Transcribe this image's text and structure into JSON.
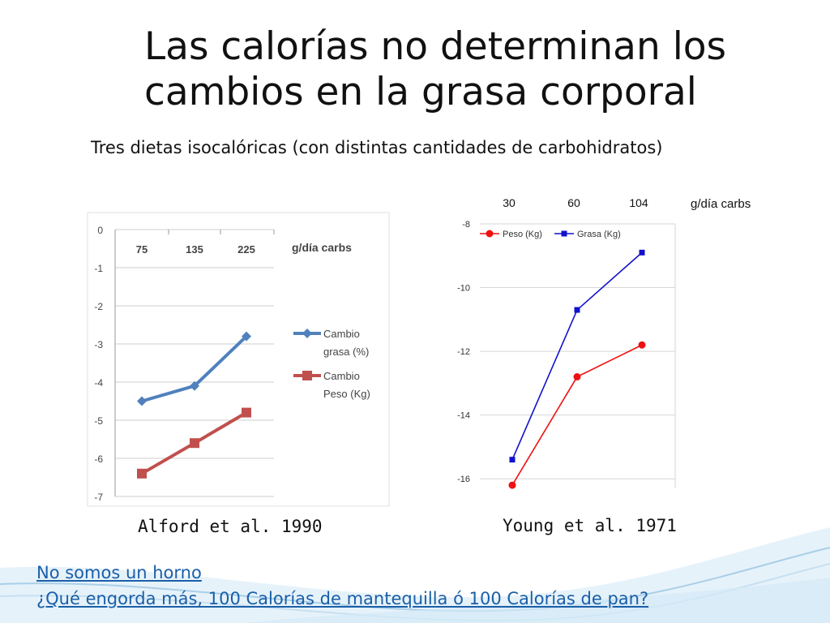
{
  "slide": {
    "title": "Las calorías no determinan los cambios en la grasa corporal",
    "subtitle": "Tres dietas isocalóricas (con distintas cantidades de carbohidratos)",
    "links": [
      {
        "label": "No somos un horno"
      },
      {
        "label": "¿Qué engorda más, 100 Calorías de mantequilla ó 100 Calorías de pan?"
      }
    ],
    "colors": {
      "link": "#1a5fa8",
      "wave": "#a9cfe8"
    }
  },
  "chart_data": [
    {
      "type": "line",
      "caption": "Alford et al. 1990",
      "categories": [
        "75",
        "135",
        "225"
      ],
      "category_unit": "g/día carbs",
      "ylim": [
        -7,
        0
      ],
      "yticks": [
        0,
        -1,
        -2,
        -3,
        -4,
        -5,
        -6,
        -7
      ],
      "grid": true,
      "legend_position": "right",
      "series": [
        {
          "name": "Cambio grasa (%)",
          "name_lines": [
            "Cambio",
            "grasa (%)"
          ],
          "values": [
            -4.5,
            -4.1,
            -2.8
          ],
          "color": "#4f81bd",
          "marker": "diamond"
        },
        {
          "name": "Cambio Peso (Kg)",
          "name_lines": [
            "Cambio",
            "Peso (Kg)"
          ],
          "values": [
            -6.4,
            -5.6,
            -4.8
          ],
          "color": "#c0504d",
          "marker": "square"
        }
      ]
    },
    {
      "type": "line",
      "caption": "Young et al. 1971",
      "categories": [
        "30",
        "60",
        "104"
      ],
      "category_unit": "g/día carbs",
      "ylim": [
        -16.3,
        -8
      ],
      "yticks": [
        -8,
        -10,
        -12,
        -14,
        -16
      ],
      "grid": true,
      "legend_position": "top-left",
      "series": [
        {
          "name": "Peso (Kg)",
          "values": [
            -16.2,
            -12.8,
            -11.8
          ],
          "color": "#ee1111",
          "marker": "circle"
        },
        {
          "name": "Grasa (Kg)",
          "values": [
            -15.4,
            -10.7,
            -8.9
          ],
          "color": "#1111cc",
          "marker": "square"
        }
      ]
    }
  ]
}
